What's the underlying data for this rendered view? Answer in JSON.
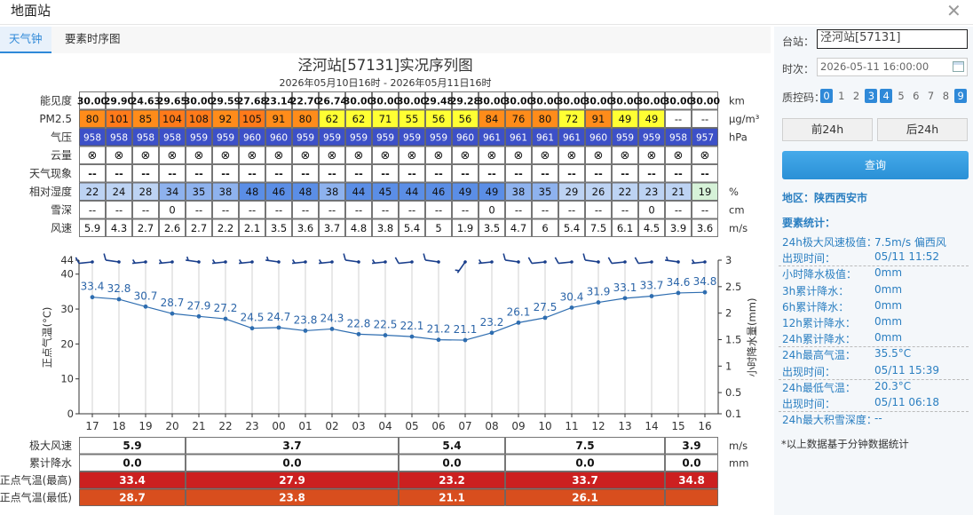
{
  "window": {
    "title": "地面站",
    "close_icon": "close-icon"
  },
  "tabs": [
    "天气钟",
    "要素时序图"
  ],
  "chart": {
    "title": "泾河站[57131]实况序列图",
    "subtitle": "2026年05月10日16时 - 2026年05月11日16时"
  },
  "rows": [
    {
      "label": "能见度",
      "unit": "km",
      "values": [
        "30.00",
        "29.90",
        "24.63",
        "29.65",
        "30.00",
        "29.59",
        "27.68",
        "23.14",
        "22.70",
        "26.74",
        "30.00",
        "30.00",
        "30.00",
        "29.48",
        "29.28",
        "30.00",
        "30.00",
        "30.00",
        "30.00",
        "30.00",
        "30.00",
        "30.00",
        "30.00",
        "30.00"
      ]
    },
    {
      "label": "PM2.5",
      "unit": "μg/m³",
      "values": [
        "80",
        "101",
        "85",
        "104",
        "108",
        "92",
        "105",
        "91",
        "80",
        "62",
        "62",
        "71",
        "55",
        "56",
        "56",
        "84",
        "76",
        "80",
        "72",
        "91",
        "49",
        "49",
        "--",
        "--"
      ],
      "colors": [
        "#ff8c1a",
        "#ff7a1a",
        "#ff8c1a",
        "#ff7a1a",
        "#ff7a1a",
        "#ff8c1a",
        "#ff7a1a",
        "#ff8c1a",
        "#ff8c1a",
        "#ffff33",
        "#ffff33",
        "#ffff33",
        "#ffff33",
        "#ffff33",
        "#ffff33",
        "#ff8c1a",
        "#ff8c1a",
        "#ff8c1a",
        "#ffff33",
        "#ff8c1a",
        "#ffff33",
        "#ffff33",
        "#ffffff",
        "#ffffff"
      ]
    },
    {
      "label": "气压",
      "unit": "hPa",
      "values": [
        "958",
        "958",
        "958",
        "958",
        "959",
        "959",
        "960",
        "960",
        "959",
        "959",
        "959",
        "959",
        "959",
        "959",
        "960",
        "961",
        "961",
        "961",
        "961",
        "960",
        "959",
        "959",
        "958",
        "957"
      ]
    },
    {
      "label": "云量",
      "unit": "",
      "values": [
        "⊗",
        "⊗",
        "⊗",
        "⊗",
        "⊗",
        "⊗",
        "⊗",
        "⊗",
        "⊗",
        "⊗",
        "⊗",
        "⊗",
        "⊗",
        "⊗",
        "⊗",
        "⊗",
        "⊗",
        "⊗",
        "⊗",
        "⊗",
        "⊗",
        "⊗",
        "⊗",
        "⊗"
      ]
    },
    {
      "label": "天气现象",
      "unit": "",
      "values": [
        "--",
        "--",
        "--",
        "--",
        "--",
        "--",
        "--",
        "--",
        "--",
        "--",
        "--",
        "--",
        "--",
        "--",
        "--",
        "--",
        "--",
        "--",
        "--",
        "--",
        "--",
        "--",
        "--",
        "--"
      ]
    },
    {
      "label": "相对湿度",
      "unit": "%",
      "values": [
        "22",
        "24",
        "28",
        "34",
        "35",
        "38",
        "48",
        "46",
        "48",
        "38",
        "44",
        "45",
        "44",
        "46",
        "49",
        "49",
        "38",
        "35",
        "29",
        "26",
        "22",
        "23",
        "21",
        "19"
      ]
    },
    {
      "label": "雪深",
      "unit": "cm",
      "values": [
        "--",
        "--",
        "--",
        "0",
        "--",
        "--",
        "--",
        "--",
        "--",
        "--",
        "--",
        "--",
        "--",
        "--",
        "--",
        "0",
        "--",
        "--",
        "--",
        "--",
        "--",
        "0",
        "--",
        "--"
      ]
    },
    {
      "label": "风速",
      "unit": "m/s",
      "values": [
        "5.9",
        "4.3",
        "2.7",
        "2.6",
        "2.7",
        "2.2",
        "2.1",
        "3.5",
        "3.6",
        "3.7",
        "4.8",
        "3.8",
        "5.4",
        "5",
        "1.9",
        "3.5",
        "4.7",
        "6",
        "5.4",
        "7.5",
        "6.1",
        "4.5",
        "3.9",
        "3.6"
      ]
    }
  ],
  "colors": {
    "accent": "#2f89d8",
    "pressure": "#3c50c8",
    "temp_line": "#2e6db0",
    "band_high": "#cc2020",
    "band_low": "#d84e1e"
  },
  "chart_data": {
    "type": "line",
    "x": [
      "17",
      "18",
      "19",
      "20",
      "21",
      "22",
      "23",
      "00",
      "01",
      "02",
      "03",
      "04",
      "05",
      "06",
      "07",
      "08",
      "09",
      "10",
      "11",
      "12",
      "13",
      "14",
      "15",
      "16"
    ],
    "series": [
      {
        "values": [
          33.4,
          32.8,
          30.7,
          28.7,
          27.9,
          27.2,
          24.5,
          24.7,
          23.8,
          24.3,
          22.8,
          22.5,
          22.1,
          21.2,
          21.1,
          23.2,
          26.1,
          27.5,
          30.4,
          31.9,
          33.1,
          33.7,
          34.6,
          34.8
        ]
      }
    ],
    "ylabel": "正点气温(°C)",
    "ylabel_right": "小时降水量(mm)",
    "y_ticks": [
      "0",
      "10",
      "20",
      "30",
      "40",
      "44"
    ],
    "y_right_ticks": [
      "3",
      "2.5",
      "2",
      "1.5",
      "1",
      "0.5",
      "0.1"
    ],
    "ylim": [
      0,
      44
    ],
    "ylim_right": [
      0.1,
      3
    ]
  },
  "summary": {
    "labels": [
      "极大风速",
      "累计降水",
      "正点气温(最高)",
      "正点气温(最低)"
    ],
    "units": [
      "m/s",
      "mm"
    ],
    "wind": [
      "5.9",
      "3.7",
      "5.4",
      "7.5",
      "3.9"
    ],
    "rain": [
      "0.0",
      "0.0",
      "0.0",
      "0.0",
      "0.0"
    ],
    "tmax": [
      "33.4",
      "27.9",
      "23.2",
      "33.7",
      "34.8"
    ],
    "tmin": [
      "28.7",
      "23.8",
      "21.1",
      "26.1",
      ""
    ]
  },
  "side": {
    "station_label": "台站：",
    "station_value": "泾河站[57131]",
    "time_label": "时次：",
    "time_value": "2026-05-11 16:00:00",
    "qc_label": "质控码：",
    "qc_codes": [
      "0",
      "1",
      "2",
      "3",
      "4",
      "5",
      "6",
      "7",
      "8",
      "9"
    ],
    "qc_on": [
      "0",
      "3",
      "4",
      "9"
    ],
    "prev_label": "前24h",
    "next_label": "后24h",
    "query_label": "查询",
    "region": "地区：陕西西安市",
    "stats_title": "要素统计：",
    "stats": [
      {
        "k": "24h极大风速极值：",
        "v": "7.5m/s 偏西风"
      },
      {
        "k": "出现时间：",
        "v": "05/11 11:52"
      },
      {
        "k": "小时降水极值：",
        "v": "0mm"
      },
      {
        "k": "3h累计降水：",
        "v": "0mm"
      },
      {
        "k": "6h累计降水：",
        "v": "0mm"
      },
      {
        "k": "12h累计降水：",
        "v": "0mm"
      },
      {
        "k": "24h累计降水：",
        "v": "0mm"
      },
      {
        "k": "24h最高气温：",
        "v": "35.5°C"
      },
      {
        "k": "出现时间：",
        "v": "05/11 15:39"
      },
      {
        "k": "24h最低气温：",
        "v": "20.3°C"
      },
      {
        "k": "出现时间：",
        "v": "05/11 06:18"
      },
      {
        "k": "24h最大积雪深度：",
        "v": "--"
      }
    ],
    "note": "*以上数据基于分钟数据统计"
  }
}
